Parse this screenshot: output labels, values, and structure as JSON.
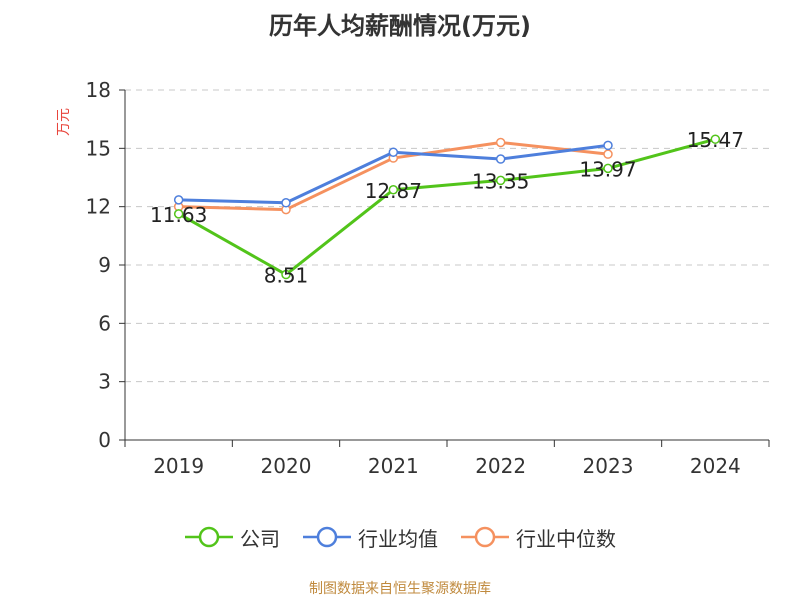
{
  "chart_data": {
    "type": "line",
    "title": "历年人均薪酬情况(万元)",
    "ylabel": "万元",
    "xlabel": "",
    "categories": [
      "2019",
      "2020",
      "2021",
      "2022",
      "2023",
      "2024"
    ],
    "ylim": [
      0,
      18
    ],
    "yticks": [
      0,
      3,
      6,
      9,
      12,
      15,
      18
    ],
    "grid": true,
    "legend_position": "bottom",
    "series": [
      {
        "name": "公司",
        "color": "#52c41a",
        "values": [
          11.63,
          8.51,
          12.87,
          13.35,
          13.97,
          15.47
        ],
        "labels": [
          "11.63",
          "8.51",
          "12.87",
          "13.35",
          "13.97",
          "15.47"
        ]
      },
      {
        "name": "行业均值",
        "color": "#4e7fdc",
        "values": [
          12.35,
          12.2,
          14.8,
          14.45,
          15.15,
          null
        ]
      },
      {
        "name": "行业中位数",
        "color": "#f5915f",
        "values": [
          12.0,
          11.85,
          14.5,
          15.3,
          14.7,
          null
        ]
      }
    ]
  },
  "footer": "制图数据来自恒生聚源数据库"
}
